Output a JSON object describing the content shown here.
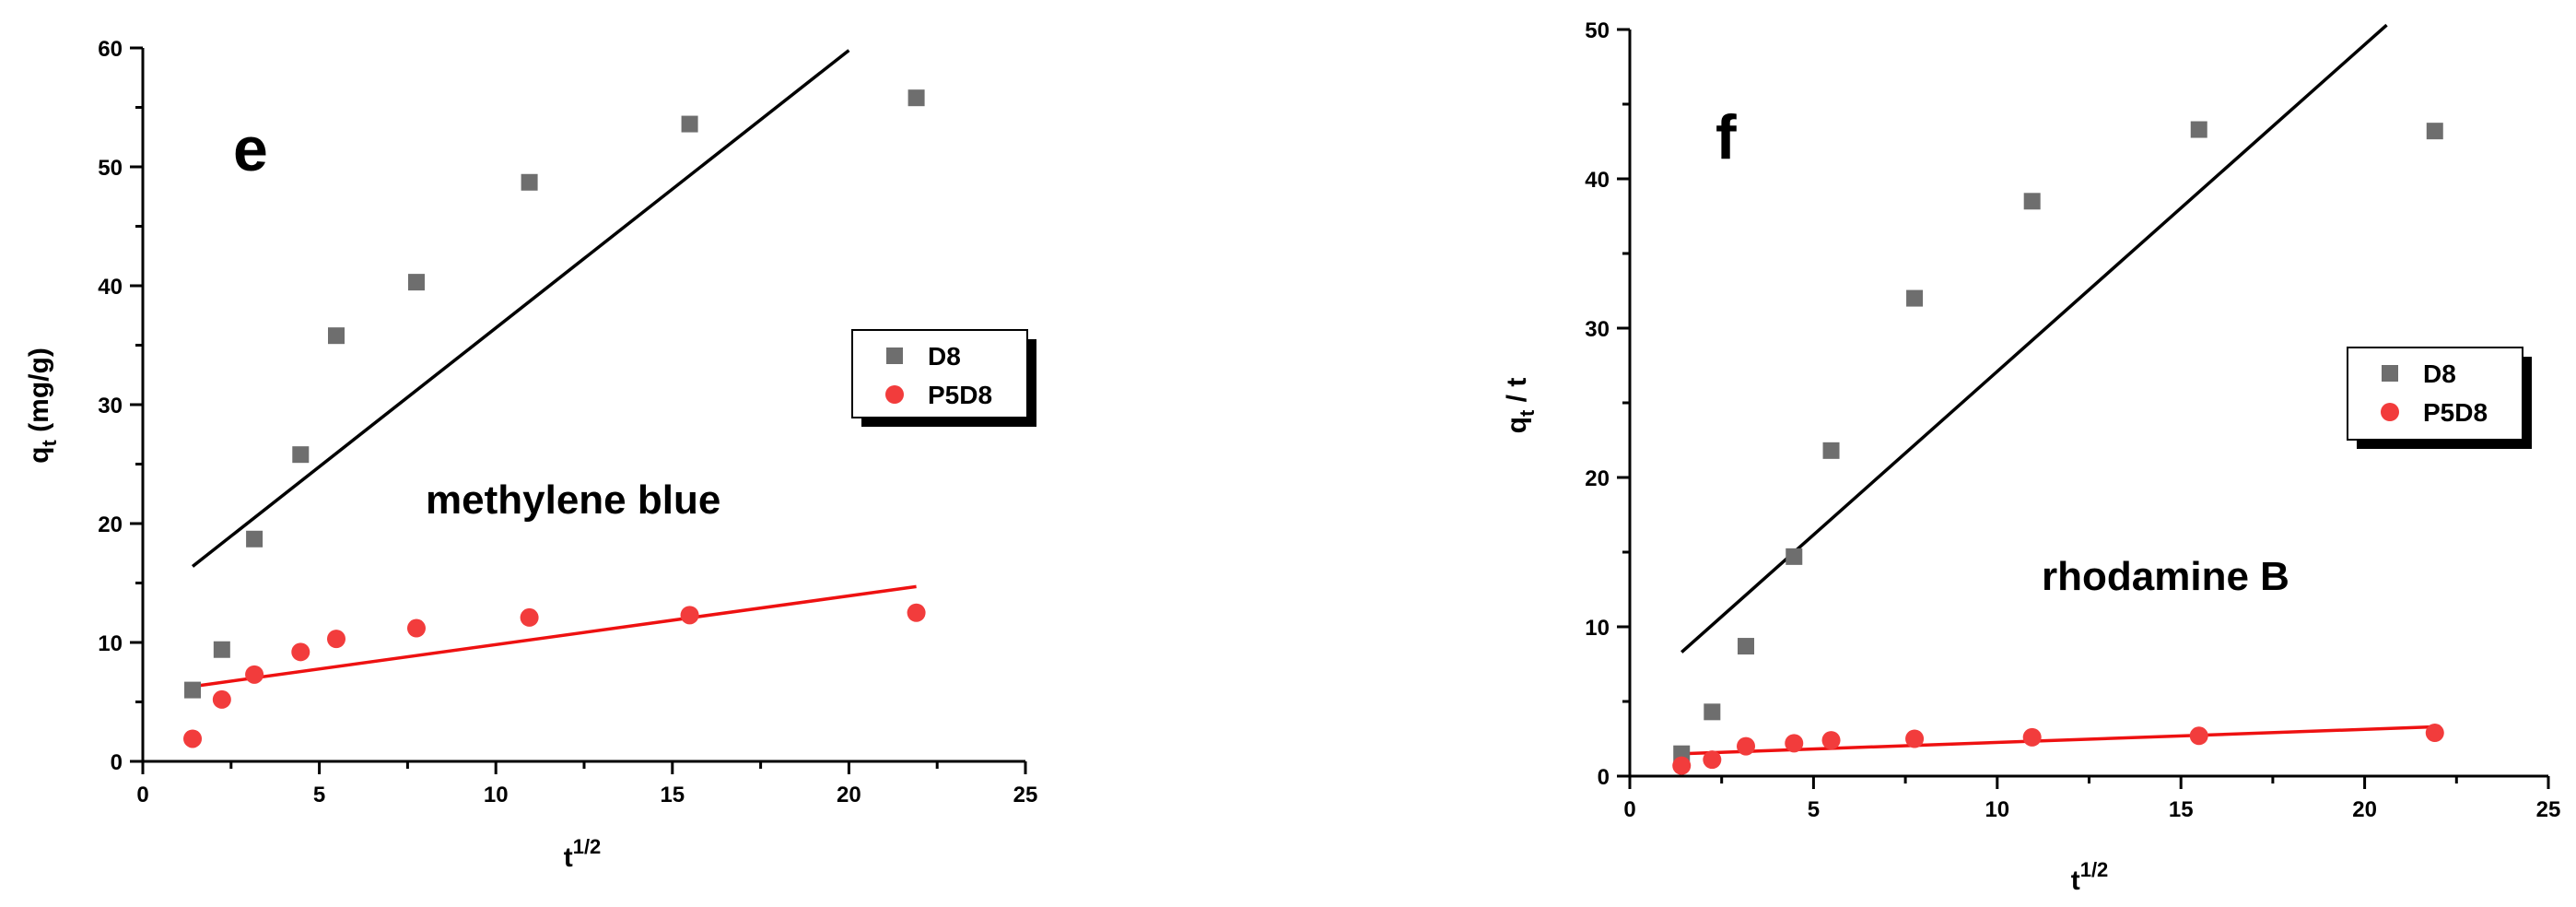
{
  "chart_data": [
    {
      "type": "scatter",
      "panel_label": "e",
      "annotation": "methylene blue",
      "xlabel": "t",
      "xlabel_sup": "1/2",
      "ylabel": "q",
      "ylabel_sub": "t",
      "ylabel_suffix": " (mg/g)",
      "xlim": [
        0,
        25
      ],
      "ylim": [
        0,
        60
      ],
      "xticks": [
        0,
        5,
        10,
        15,
        20,
        25
      ],
      "yticks": [
        0,
        10,
        20,
        30,
        40,
        50,
        60
      ],
      "grid": false,
      "legend_position": "right",
      "series": [
        {
          "name": "D8",
          "marker": "square",
          "color": "#6e6e6e",
          "fit_color": "#000000",
          "x": [
            1.41,
            2.24,
            3.16,
            4.47,
            5.48,
            7.75,
            10.95,
            15.49,
            21.91
          ],
          "y": [
            6.0,
            9.4,
            18.7,
            25.8,
            35.8,
            40.3,
            48.7,
            53.6,
            55.8
          ],
          "fit": [
            [
              1.41,
              16.4
            ],
            [
              20.0,
              59.8
            ]
          ]
        },
        {
          "name": "P5D8",
          "marker": "circle",
          "color": "#f23c3c",
          "fit_color": "#ee1111",
          "x": [
            1.41,
            2.24,
            3.16,
            4.47,
            5.48,
            7.75,
            10.95,
            15.49,
            21.91
          ],
          "y": [
            1.9,
            5.2,
            7.3,
            9.2,
            10.3,
            11.2,
            12.1,
            12.3,
            12.5
          ],
          "fit": [
            [
              1.41,
              6.3
            ],
            [
              21.91,
              14.7
            ]
          ]
        }
      ]
    },
    {
      "type": "scatter",
      "panel_label": "f",
      "annotation": "rhodamine B",
      "xlabel": "t",
      "xlabel_sup": "1/2",
      "ylabel": "q",
      "ylabel_sub": "t",
      "ylabel_suffix": " / t",
      "xlim": [
        0,
        25
      ],
      "ylim": [
        0,
        50
      ],
      "xticks": [
        0,
        5,
        10,
        15,
        20,
        25
      ],
      "yticks": [
        0,
        10,
        20,
        30,
        40,
        50
      ],
      "grid": false,
      "legend_position": "right",
      "series": [
        {
          "name": "D8",
          "marker": "square",
          "color": "#6e6e6e",
          "fit_color": "#000000",
          "x": [
            1.41,
            2.24,
            3.16,
            4.47,
            5.48,
            7.75,
            10.95,
            15.49,
            21.91
          ],
          "y": [
            1.5,
            4.3,
            8.7,
            14.7,
            21.8,
            32.0,
            38.5,
            43.3,
            43.2
          ],
          "fit": [
            [
              1.41,
              8.3
            ],
            [
              20.6,
              50.3
            ]
          ]
        },
        {
          "name": "P5D8",
          "marker": "circle",
          "color": "#f23c3c",
          "fit_color": "#ee1111",
          "x": [
            1.41,
            2.24,
            3.16,
            4.47,
            5.48,
            7.75,
            10.95,
            15.49,
            21.91
          ],
          "y": [
            0.7,
            1.1,
            2.0,
            2.2,
            2.4,
            2.5,
            2.6,
            2.7,
            2.9
          ],
          "fit": [
            [
              1.41,
              1.5
            ],
            [
              21.91,
              3.3
            ]
          ]
        }
      ]
    }
  ]
}
